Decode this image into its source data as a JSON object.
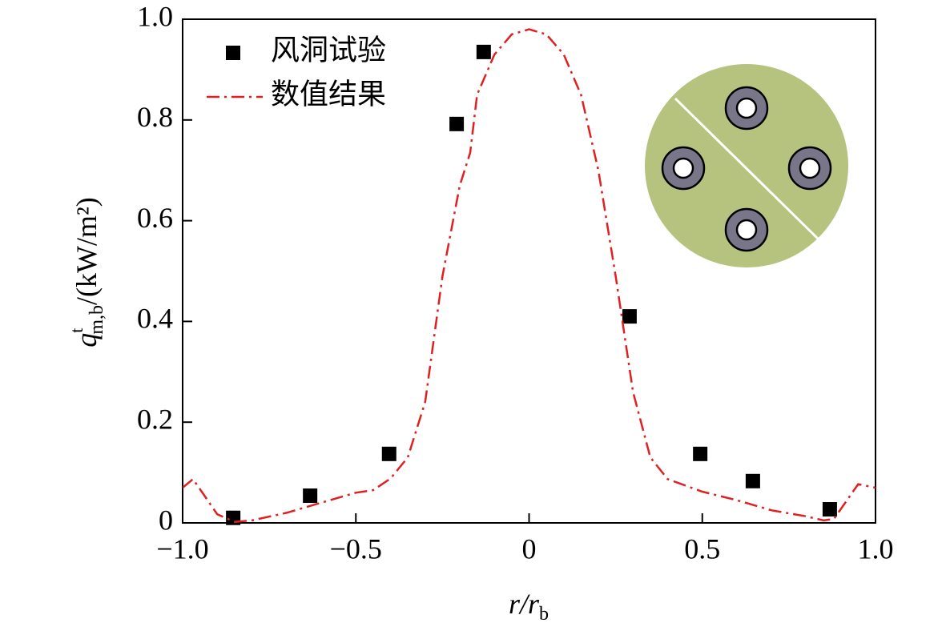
{
  "chart_data": {
    "type": "scatter",
    "x_label": {
      "base": "r/r",
      "sub": "b"
    },
    "y_label": {
      "base": "q",
      "sup": "t",
      "sub": "m,b",
      "unit": "/(kW/m²)"
    },
    "xlim": [
      -1,
      1
    ],
    "ylim": [
      0,
      1
    ],
    "xticks": [
      {
        "value": -1,
        "label": "−1.0"
      },
      {
        "value": -0.5,
        "label": "−0.5"
      },
      0,
      0.5,
      {
        "value": 1,
        "label": "1.0"
      }
    ],
    "yticks": [
      0,
      0.2,
      0.4,
      0.6,
      0.8,
      {
        "value": 1,
        "label": "1.0"
      }
    ],
    "legend": "upper left",
    "series": [
      {
        "name": "风洞试验",
        "type": "scatter",
        "color": "#000000",
        "x": [
          -0.854,
          -0.632,
          -0.404,
          -0.209,
          -0.131,
          0.29,
          0.494,
          0.646,
          0.868
        ],
        "values": [
          0.01,
          0.054,
          0.137,
          0.792,
          0.935,
          0.41,
          0.137,
          0.083,
          0.027
        ]
      },
      {
        "name": "数值结果",
        "type": "line",
        "color": "#e02020",
        "x": [
          -1.0,
          -0.97,
          -0.9,
          -0.85,
          -0.8,
          -0.7,
          -0.6,
          -0.5,
          -0.45,
          -0.4,
          -0.35,
          -0.3,
          -0.25,
          -0.2,
          -0.17,
          -0.15,
          -0.1,
          -0.05,
          0,
          0.05,
          0.1,
          0.15,
          0.2,
          0.25,
          0.3,
          0.35,
          0.4,
          0.5,
          0.6,
          0.7,
          0.8,
          0.85,
          0.88,
          0.95,
          1.0
        ],
        "values": [
          0.07,
          0.087,
          0.017,
          0.002,
          0.005,
          0.02,
          0.04,
          0.06,
          0.065,
          0.088,
          0.13,
          0.24,
          0.49,
          0.67,
          0.735,
          0.85,
          0.93,
          0.97,
          0.98,
          0.97,
          0.93,
          0.85,
          0.7,
          0.49,
          0.26,
          0.13,
          0.087,
          0.062,
          0.045,
          0.025,
          0.013,
          0.005,
          0.008,
          0.077,
          0.07
        ]
      }
    ]
  }
}
